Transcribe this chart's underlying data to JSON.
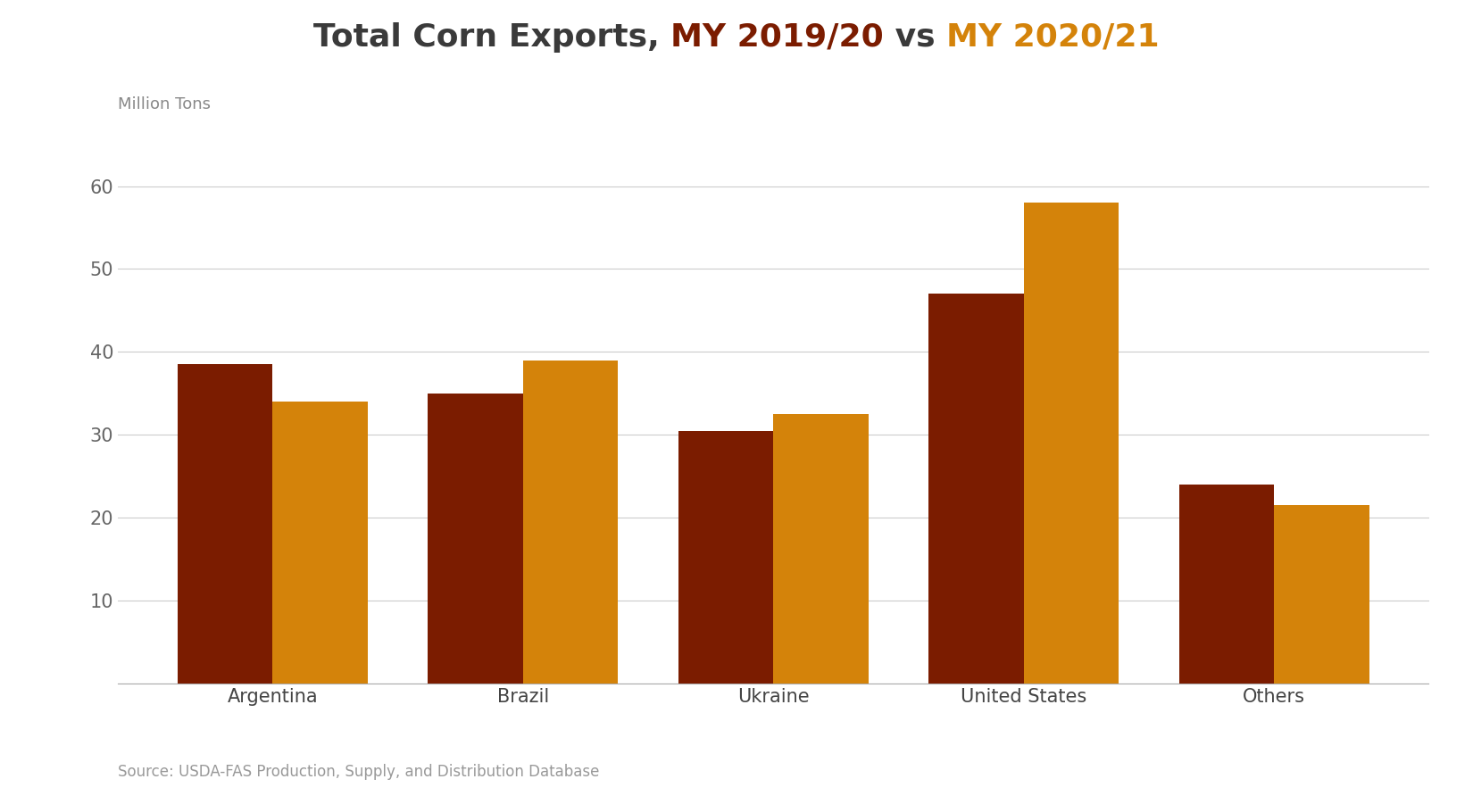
{
  "title_parts": [
    {
      "text": "Total Corn Exports, ",
      "color": "#3a3a3a",
      "bold": true
    },
    {
      "text": "MY 2019/20",
      "color": "#7B1C00",
      "bold": true
    },
    {
      "text": " vs ",
      "color": "#3a3a3a",
      "bold": true
    },
    {
      "text": "MY 2020/21",
      "color": "#D4830A",
      "bold": true
    }
  ],
  "ylabel": "Million Tons",
  "categories": [
    "Argentina",
    "Brazil",
    "Ukraine",
    "United States",
    "Others"
  ],
  "values_2019": [
    38.5,
    35.0,
    30.5,
    47.0,
    24.0
  ],
  "values_2020": [
    34.0,
    39.0,
    32.5,
    58.0,
    21.5
  ],
  "color_2019": "#7B1C00",
  "color_2020": "#D4830A",
  "ylim": [
    0,
    65
  ],
  "yticks": [
    0,
    10,
    20,
    30,
    40,
    50,
    60
  ],
  "bar_width": 0.38,
  "source_text": "Source: USDA-FAS Production, Supply, and Distribution Database",
  "background_color": "#ffffff",
  "grid_color": "#cccccc",
  "title_fontsize": 26,
  "label_fontsize": 13,
  "tick_fontsize": 15,
  "source_fontsize": 12
}
